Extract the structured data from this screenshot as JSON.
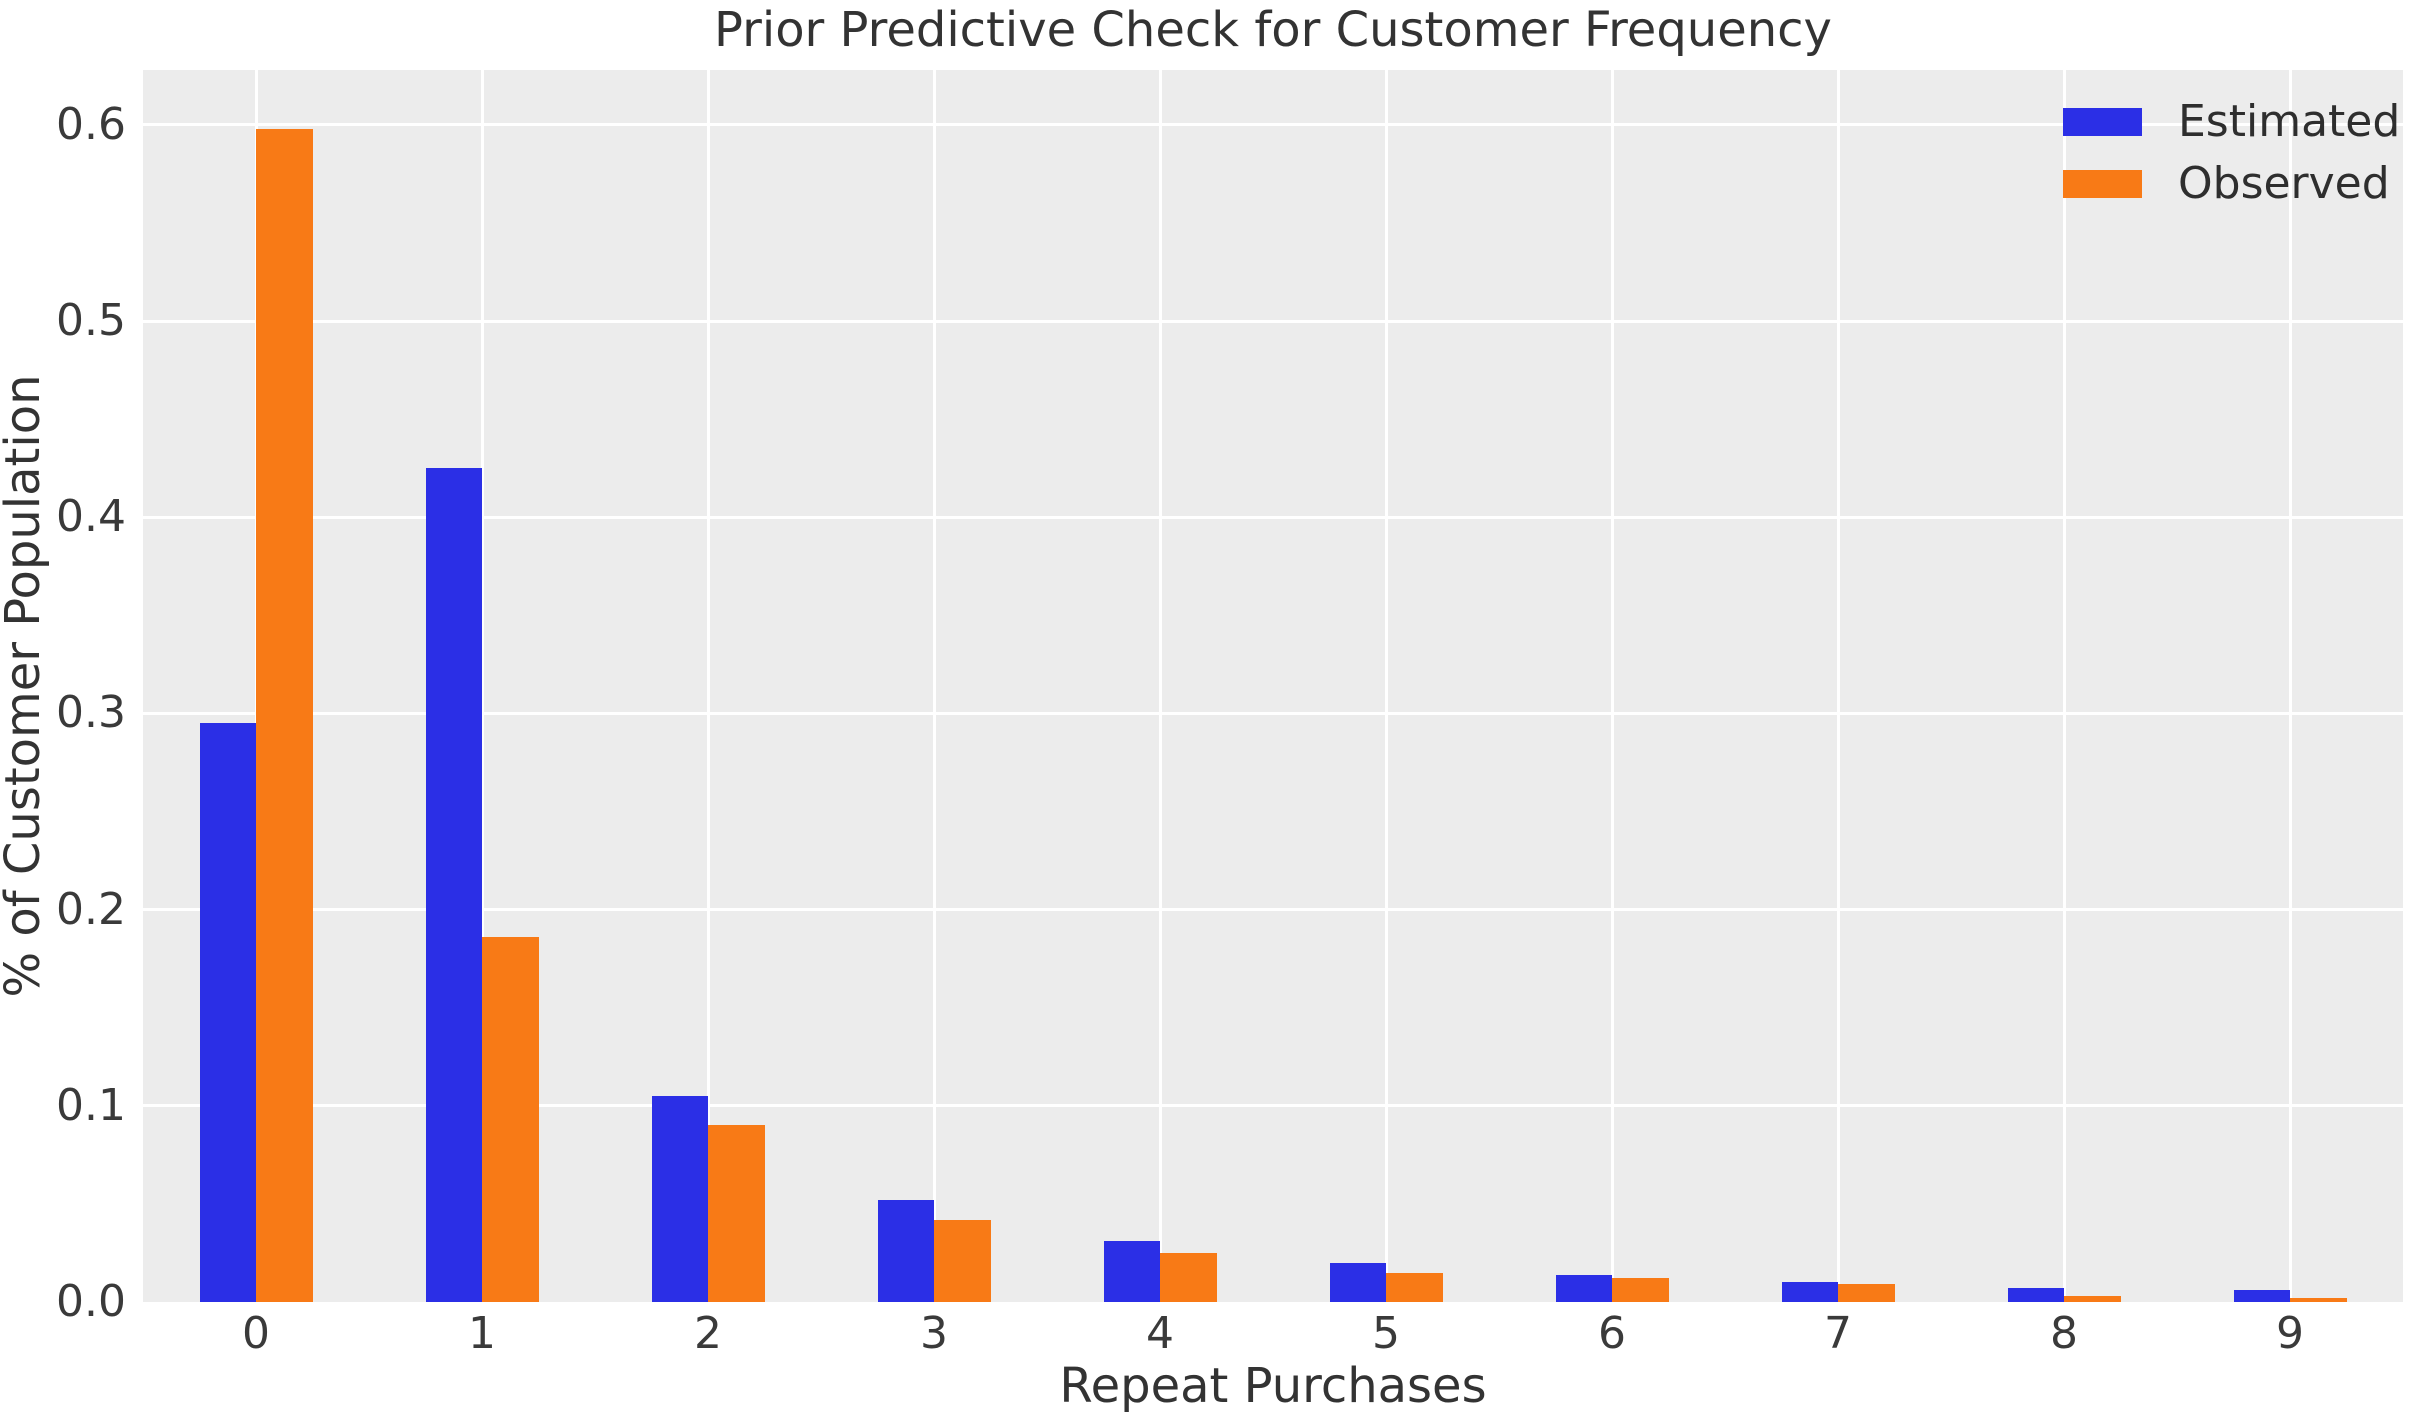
{
  "colors": {
    "estimated": "#2b2fe6",
    "observed": "#f87a16",
    "plot_background": "#ececec",
    "gridline": "#ffffff",
    "text": "#333333"
  },
  "chart_data": {
    "type": "bar",
    "title": "Prior Predictive Check for Customer Frequency",
    "xlabel": "Repeat Purchases",
    "ylabel": "% of Customer Population",
    "categories": [
      "0",
      "1",
      "2",
      "3",
      "4",
      "5",
      "6",
      "7",
      "8",
      "9"
    ],
    "series": [
      {
        "name": "Estimated",
        "color_key": "estimated",
        "values": [
          0.295,
          0.425,
          0.105,
          0.052,
          0.031,
          0.02,
          0.014,
          0.01,
          0.007,
          0.006
        ]
      },
      {
        "name": "Observed",
        "color_key": "observed",
        "values": [
          0.598,
          0.186,
          0.09,
          0.042,
          0.025,
          0.015,
          0.012,
          0.009,
          0.003,
          0.002
        ]
      }
    ],
    "ytick_values": [
      0.0,
      0.1,
      0.2,
      0.3,
      0.4,
      0.5,
      0.6
    ],
    "ytick_labels": [
      "0.0",
      "0.1",
      "0.2",
      "0.3",
      "0.4",
      "0.5",
      "0.6"
    ],
    "ylim": [
      0,
      0.628
    ],
    "grid": true,
    "legend_position": "upper right",
    "bar_width_fraction": 0.25
  }
}
